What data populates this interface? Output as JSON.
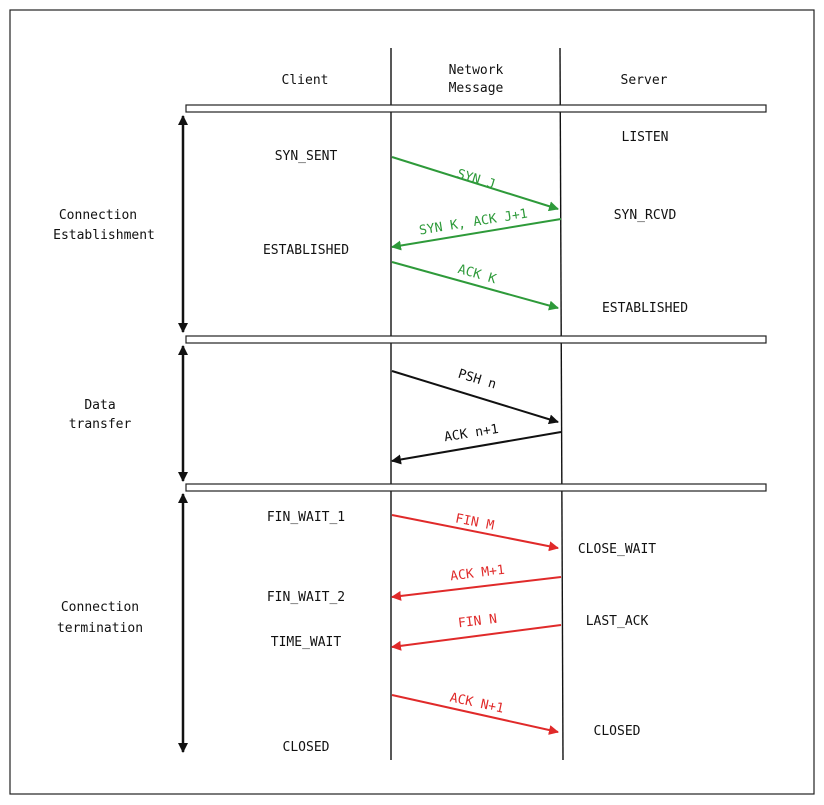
{
  "columns": {
    "client": "Client",
    "network_line1": "Network",
    "network_line2": "Message",
    "server": "Server"
  },
  "phases": {
    "establishment": {
      "line1": "Connection",
      "line2": "Establishment"
    },
    "transfer": {
      "line1": "Data",
      "line2": "transfer"
    },
    "termination": {
      "line1": "Connection",
      "line2": "termination"
    }
  },
  "client_states": {
    "syn_sent": "SYN_SENT",
    "established": "ESTABLISHED",
    "fin_wait_1": "FIN_WAIT_1",
    "fin_wait_2": "FIN_WAIT_2",
    "time_wait": "TIME_WAIT",
    "closed": "CLOSED"
  },
  "server_states": {
    "listen": "LISTEN",
    "syn_rcvd": "SYN_RCVD",
    "established": "ESTABLISHED",
    "close_wait": "CLOSE_WAIT",
    "last_ack": "LAST_ACK",
    "closed": "CLOSED"
  },
  "messages": {
    "syn_j": "SYN J",
    "syn_k_ack": "SYN K, ACK J+1",
    "ack_k": "ACK K",
    "psh_n": "PSH n",
    "ack_n1": "ACK n+1",
    "fin_m": "FIN M",
    "ack_m1": "ACK M+1",
    "fin_n": "FIN N",
    "ack_n_plus_1": "ACK N+1"
  },
  "colors": {
    "establishment": "#2e9a3a",
    "transfer": "#111111",
    "termination": "#e02a2a"
  }
}
